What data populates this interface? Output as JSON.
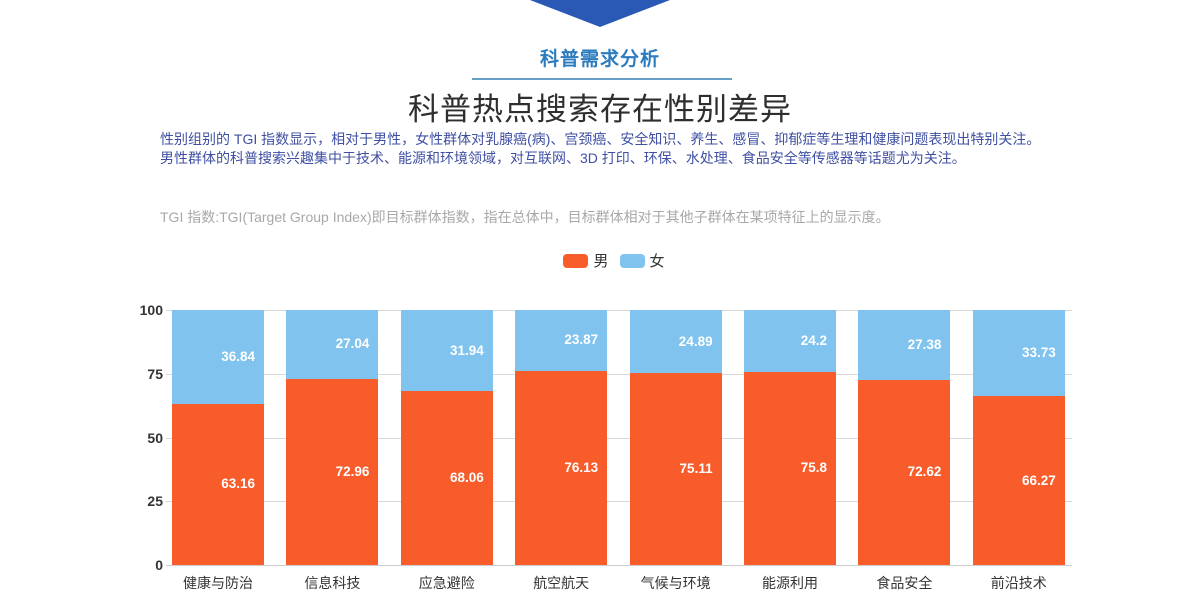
{
  "header": {
    "section_title": "科普需求分析",
    "main_title": "科普热点搜索存在性别差异"
  },
  "description": {
    "body": "性别组别的 TGI 指数显示，相对于男性，女性群体对乳腺癌(病)、宫颈癌、安全知识、养生、感冒、抑郁症等生理和健康问题表现出特别关注。男性群体的科普搜索兴趣集中于技术、能源和环境领域，对互联网、3D 打印、环保、水处理、食品安全等传感器等话题尤为关注。",
    "tgi_note": "TGI 指数:TGI(Target Group Index)即目标群体指数，指在总体中，目标群体相对于其他子群体在某项特征上的显示度。"
  },
  "colors": {
    "male": "#f85c2a",
    "female": "#7fc3ee",
    "arrow": "#2a58b5",
    "section_title": "#2b7cbe",
    "underline": "#65a0c4",
    "paragraph": "#3f4fa3",
    "note_gray": "#a8a8a8",
    "axis_text": "#333333",
    "gridline": "#d9d9d9"
  },
  "chart_data": {
    "type": "bar",
    "stacked": true,
    "title": "",
    "xlabel": "",
    "ylabel": "",
    "categories": [
      "健康与防治",
      "信息科技",
      "应急避险",
      "航空航天",
      "气候与环境",
      "能源利用",
      "食品安全",
      "前沿技术"
    ],
    "series": [
      {
        "name": "男",
        "color": "#f85c2a",
        "values": [
          63.16,
          72.96,
          68.06,
          76.13,
          75.11,
          75.8,
          72.62,
          66.27
        ]
      },
      {
        "name": "女",
        "color": "#7fc3ee",
        "values": [
          36.84,
          27.04,
          31.94,
          23.87,
          24.89,
          24.2,
          27.38,
          33.73
        ]
      }
    ],
    "ylim": [
      0,
      100
    ],
    "yticks": [
      0,
      25,
      50,
      75,
      100
    ],
    "grid": true,
    "legend_position": "top",
    "value_labels": "inside"
  }
}
